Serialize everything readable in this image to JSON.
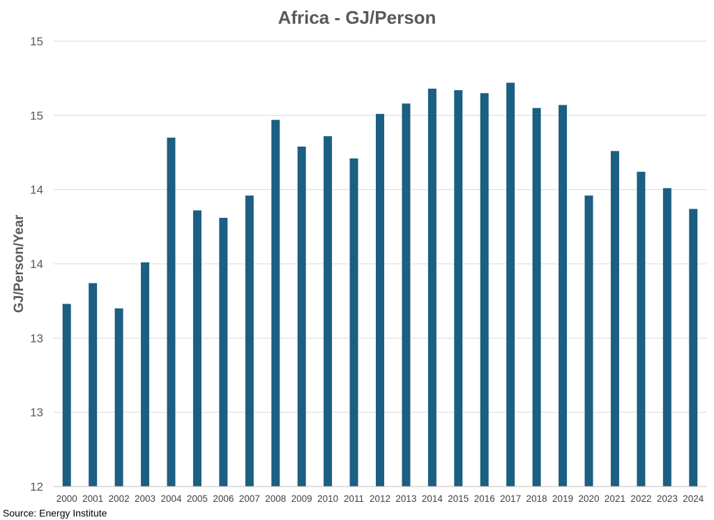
{
  "colors": {
    "bar": "#1b5f82",
    "text": "#595959",
    "grid": "#d9d9d9"
  },
  "source": "Source: Energy Institute",
  "chart_data": {
    "type": "bar",
    "title": "Africa - GJ/Person",
    "xlabel": "",
    "ylabel": "GJ/Person/Year",
    "ylim": [
      12,
      15
    ],
    "yticks": [
      12,
      12.5,
      13,
      13.5,
      14,
      14.5,
      15
    ],
    "ytick_labels": [
      "12",
      "13",
      "13",
      "14",
      "14",
      "15",
      "15"
    ],
    "grid": true,
    "categories": [
      "2000",
      "2001",
      "2002",
      "2003",
      "2004",
      "2005",
      "2006",
      "2007",
      "2008",
      "2009",
      "2010",
      "2011",
      "2012",
      "2013",
      "2014",
      "2015",
      "2016",
      "2017",
      "2018",
      "2019",
      "2020",
      "2021",
      "2022",
      "2023",
      "2024"
    ],
    "values": [
      13.23,
      13.37,
      13.2,
      13.51,
      14.35,
      13.86,
      13.81,
      13.96,
      14.47,
      14.29,
      14.36,
      14.21,
      14.51,
      14.58,
      14.68,
      14.67,
      14.65,
      14.72,
      14.55,
      14.57,
      13.96,
      14.26,
      14.12,
      14.01,
      13.87
    ]
  }
}
